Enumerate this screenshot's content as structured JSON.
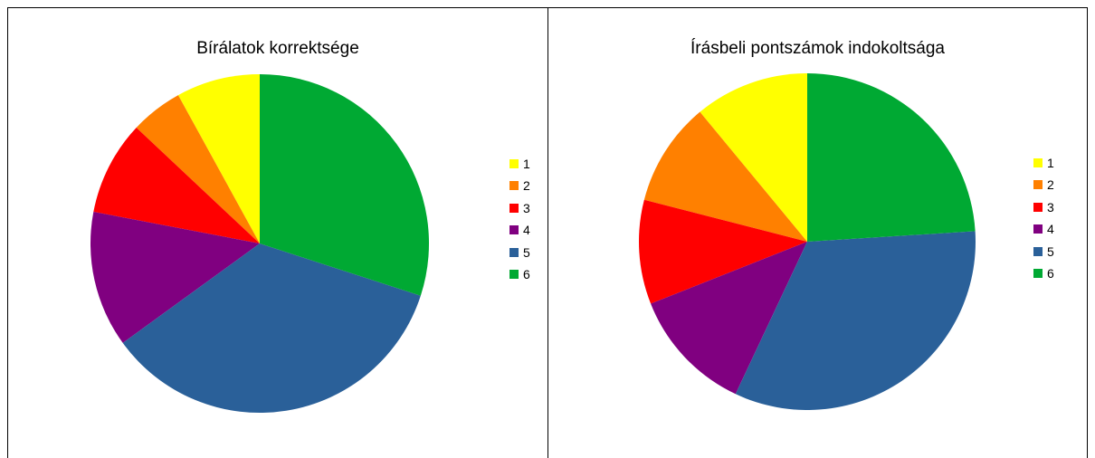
{
  "chart_data": [
    {
      "type": "pie",
      "title": "Bírálatok korrektsége",
      "categories": [
        "1",
        "2",
        "3",
        "4",
        "5",
        "6"
      ],
      "values": [
        8,
        5,
        9,
        13,
        35,
        30
      ],
      "colors": [
        "#ffff00",
        "#ff8000",
        "#ff0000",
        "#800080",
        "#2a6099",
        "#00a933"
      ],
      "legend_position": "right"
    },
    {
      "type": "pie",
      "title": "Írásbeli pontszámok indokoltsága",
      "categories": [
        "1",
        "2",
        "3",
        "4",
        "5",
        "6"
      ],
      "values": [
        11,
        10,
        10,
        12,
        33,
        24
      ],
      "colors": [
        "#ffff00",
        "#ff8000",
        "#ff0000",
        "#800080",
        "#2a6099",
        "#00a933"
      ],
      "legend_position": "right"
    }
  ]
}
